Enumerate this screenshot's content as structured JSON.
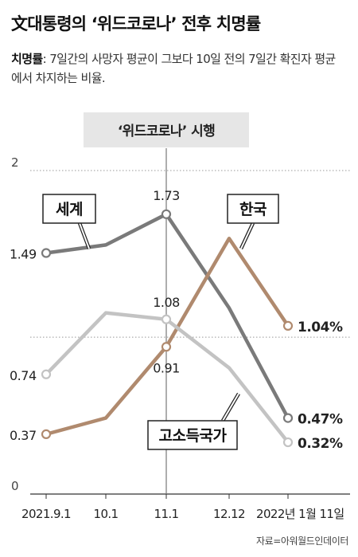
{
  "header": {
    "title": "文대통령의 ‘위드코로나’ 전후 치명률",
    "description_term": "치명률",
    "description_rest": ": 7일간의 사망자 평균이 그보다 10일 전의 7일간 확진자 평균에서 차지하는 비율."
  },
  "source": "자료=아워월드인데이터",
  "colors": {
    "world": "#7a7a7a",
    "korea": "#b08a6e",
    "high_income": "#c3c3c3",
    "ink": "#222222",
    "grid": "#999999"
  },
  "chart_data": {
    "type": "line",
    "categories": [
      "2021.9.1",
      "10.1",
      "11.1",
      "12.12",
      "2022년 1월 11일"
    ],
    "ylim": [
      0,
      2
    ],
    "y_ticks": [
      0,
      2
    ],
    "grid": "dotted line at the top tick",
    "annotation": {
      "label": "‘위드코로나’ 시행",
      "at": "11.1"
    },
    "series": [
      {
        "name": "세계",
        "color": "#7a7a7a",
        "points": [
          {
            "x": "2021.9.1",
            "y": 1.49
          },
          {
            "x": "10.1",
            "y": 1.54
          },
          {
            "x": "11.1",
            "y": 1.73
          },
          {
            "x": "12.12",
            "y": 1.15
          },
          {
            "x": "2022년 1월 11일",
            "y": 0.47
          }
        ],
        "labels": [
          "1.49",
          "1.73",
          "0.47%"
        ]
      },
      {
        "name": "한국",
        "color": "#b08a6e",
        "points": [
          {
            "x": "2021.9.1",
            "y": 0.37
          },
          {
            "x": "10.1",
            "y": 0.47
          },
          {
            "x": "11.1",
            "y": 0.91
          },
          {
            "x": "12.12",
            "y": 1.58
          },
          {
            "x": "2022년 1월 11일",
            "y": 1.04
          }
        ],
        "labels": [
          "0.37",
          "0.91",
          "1.04%"
        ]
      },
      {
        "name": "고소득국가",
        "color": "#c3c3c3",
        "points": [
          {
            "x": "2021.9.1",
            "y": 0.74
          },
          {
            "x": "10.1",
            "y": 1.12
          },
          {
            "x": "11.1",
            "y": 1.08
          },
          {
            "x": "12.12",
            "y": 0.78
          },
          {
            "x": "2022년 1월 11일",
            "y": 0.32
          }
        ],
        "labels": [
          "0.74",
          "1.08",
          "0.32%"
        ]
      }
    ]
  }
}
